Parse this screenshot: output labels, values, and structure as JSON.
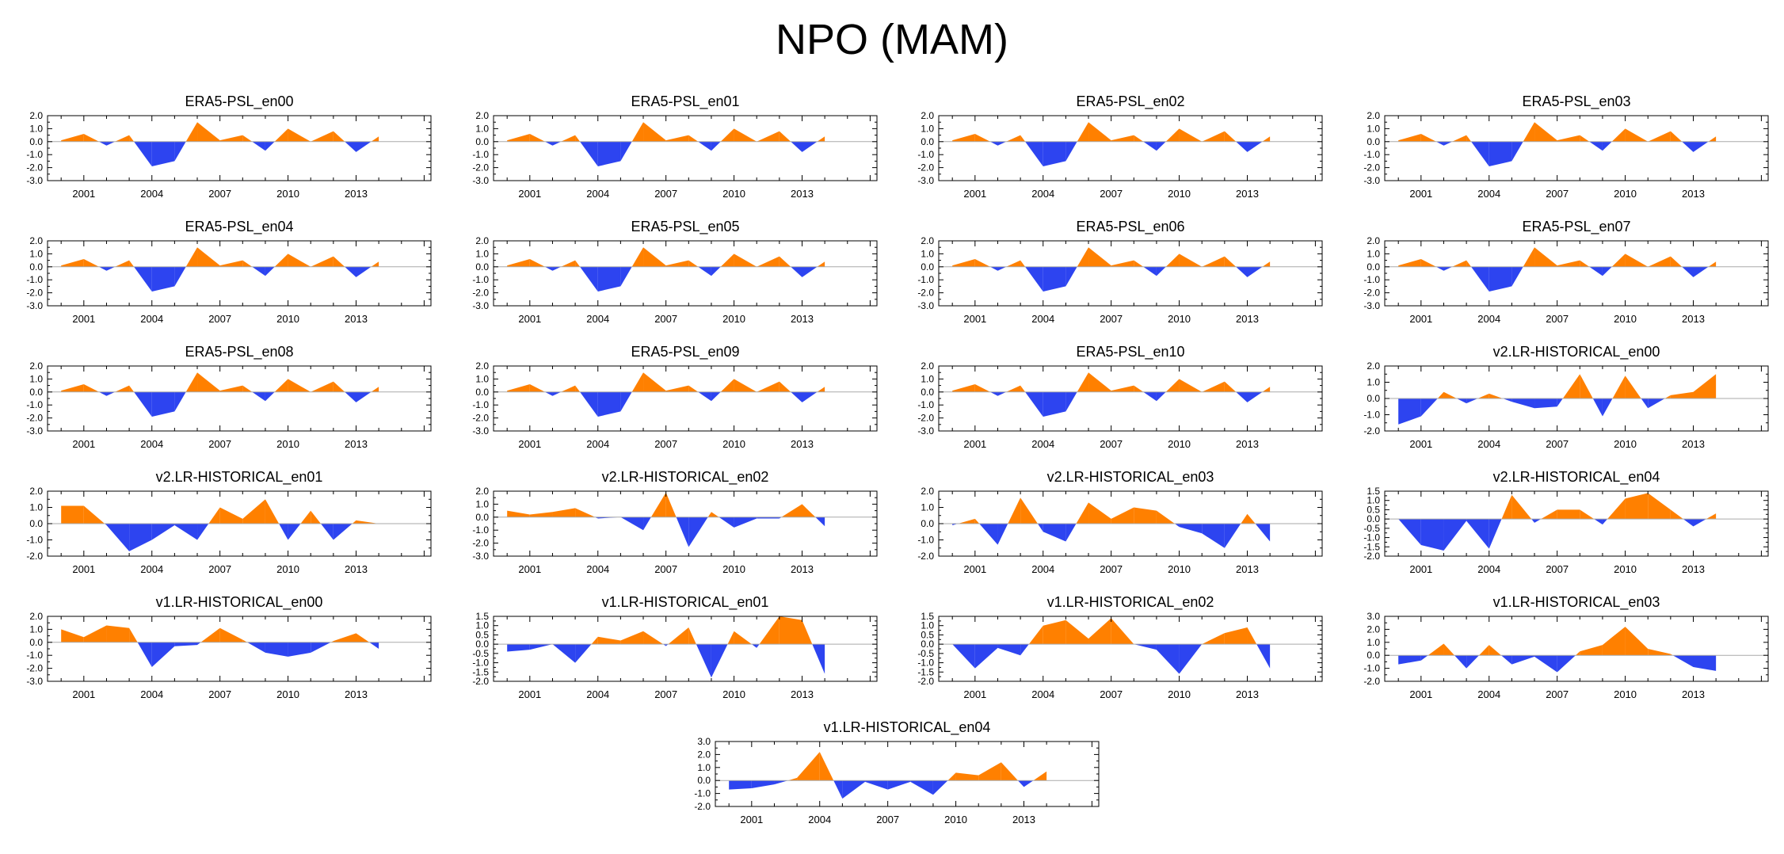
{
  "title": "NPO (MAM)",
  "colors": {
    "positive": "#ff8000",
    "negative": "#2d44f0",
    "axis": "#000000",
    "zero_line": "#aaaaaa"
  },
  "chart_data": [
    {
      "type": "area",
      "title": "ERA5-PSL_en00",
      "x": [
        2000,
        2001,
        2002,
        2003,
        2004,
        2005,
        2006,
        2007,
        2008,
        2009,
        2010,
        2011,
        2012,
        2013,
        2014
      ],
      "values": [
        0.1,
        0.6,
        -0.3,
        0.5,
        -1.9,
        -1.5,
        1.5,
        0.1,
        0.5,
        -0.7,
        1.0,
        0.0,
        0.8,
        -0.8,
        0.4
      ],
      "ylim": [
        -3.0,
        2.0
      ],
      "yticks": [
        "2.0",
        "1.0",
        "0.0",
        "-1.0",
        "-2.0",
        "-3.0"
      ],
      "xticks": [
        "2001",
        "2004",
        "2007",
        "2010",
        "2013"
      ]
    },
    {
      "type": "area",
      "title": "ERA5-PSL_en01",
      "x": [
        2000,
        2001,
        2002,
        2003,
        2004,
        2005,
        2006,
        2007,
        2008,
        2009,
        2010,
        2011,
        2012,
        2013,
        2014
      ],
      "values": [
        0.1,
        0.6,
        -0.3,
        0.5,
        -1.9,
        -1.5,
        1.5,
        0.1,
        0.5,
        -0.7,
        1.0,
        0.0,
        0.8,
        -0.8,
        0.4
      ],
      "ylim": [
        -3.0,
        2.0
      ],
      "yticks": [
        "2.0",
        "1.0",
        "0.0",
        "-1.0",
        "-2.0",
        "-3.0"
      ],
      "xticks": [
        "2001",
        "2004",
        "2007",
        "2010",
        "2013"
      ]
    },
    {
      "type": "area",
      "title": "ERA5-PSL_en02",
      "x": [
        2000,
        2001,
        2002,
        2003,
        2004,
        2005,
        2006,
        2007,
        2008,
        2009,
        2010,
        2011,
        2012,
        2013,
        2014
      ],
      "values": [
        0.1,
        0.6,
        -0.3,
        0.5,
        -1.9,
        -1.5,
        1.5,
        0.1,
        0.5,
        -0.7,
        1.0,
        0.0,
        0.8,
        -0.8,
        0.4
      ],
      "ylim": [
        -3.0,
        2.0
      ],
      "yticks": [
        "2.0",
        "1.0",
        "0.0",
        "-1.0",
        "-2.0",
        "-3.0"
      ],
      "xticks": [
        "2001",
        "2004",
        "2007",
        "2010",
        "2013"
      ]
    },
    {
      "type": "area",
      "title": "ERA5-PSL_en03",
      "x": [
        2000,
        2001,
        2002,
        2003,
        2004,
        2005,
        2006,
        2007,
        2008,
        2009,
        2010,
        2011,
        2012,
        2013,
        2014
      ],
      "values": [
        0.1,
        0.6,
        -0.3,
        0.5,
        -1.9,
        -1.5,
        1.5,
        0.1,
        0.5,
        -0.7,
        1.0,
        0.0,
        0.8,
        -0.8,
        0.4
      ],
      "ylim": [
        -3.0,
        2.0
      ],
      "yticks": [
        "2.0",
        "1.0",
        "0.0",
        "-1.0",
        "-2.0",
        "-3.0"
      ],
      "xticks": [
        "2001",
        "2004",
        "2007",
        "2010",
        "2013"
      ]
    },
    {
      "type": "area",
      "title": "ERA5-PSL_en04",
      "x": [
        2000,
        2001,
        2002,
        2003,
        2004,
        2005,
        2006,
        2007,
        2008,
        2009,
        2010,
        2011,
        2012,
        2013,
        2014
      ],
      "values": [
        0.1,
        0.6,
        -0.3,
        0.5,
        -1.9,
        -1.5,
        1.5,
        0.1,
        0.5,
        -0.7,
        1.0,
        0.0,
        0.8,
        -0.8,
        0.4
      ],
      "ylim": [
        -3.0,
        2.0
      ],
      "yticks": [
        "2.0",
        "1.0",
        "0.0",
        "-1.0",
        "-2.0",
        "-3.0"
      ],
      "xticks": [
        "2001",
        "2004",
        "2007",
        "2010",
        "2013"
      ]
    },
    {
      "type": "area",
      "title": "ERA5-PSL_en05",
      "x": [
        2000,
        2001,
        2002,
        2003,
        2004,
        2005,
        2006,
        2007,
        2008,
        2009,
        2010,
        2011,
        2012,
        2013,
        2014
      ],
      "values": [
        0.1,
        0.6,
        -0.3,
        0.5,
        -1.9,
        -1.5,
        1.5,
        0.1,
        0.5,
        -0.7,
        1.0,
        0.0,
        0.8,
        -0.8,
        0.4
      ],
      "ylim": [
        -3.0,
        2.0
      ],
      "yticks": [
        "2.0",
        "1.0",
        "0.0",
        "-1.0",
        "-2.0",
        "-3.0"
      ],
      "xticks": [
        "2001",
        "2004",
        "2007",
        "2010",
        "2013"
      ]
    },
    {
      "type": "area",
      "title": "ERA5-PSL_en06",
      "x": [
        2000,
        2001,
        2002,
        2003,
        2004,
        2005,
        2006,
        2007,
        2008,
        2009,
        2010,
        2011,
        2012,
        2013,
        2014
      ],
      "values": [
        0.1,
        0.6,
        -0.3,
        0.5,
        -1.9,
        -1.5,
        1.5,
        0.1,
        0.5,
        -0.7,
        1.0,
        0.0,
        0.8,
        -0.8,
        0.4
      ],
      "ylim": [
        -3.0,
        2.0
      ],
      "yticks": [
        "2.0",
        "1.0",
        "0.0",
        "-1.0",
        "-2.0",
        "-3.0"
      ],
      "xticks": [
        "2001",
        "2004",
        "2007",
        "2010",
        "2013"
      ]
    },
    {
      "type": "area",
      "title": "ERA5-PSL_en07",
      "x": [
        2000,
        2001,
        2002,
        2003,
        2004,
        2005,
        2006,
        2007,
        2008,
        2009,
        2010,
        2011,
        2012,
        2013,
        2014
      ],
      "values": [
        0.1,
        0.6,
        -0.3,
        0.5,
        -1.9,
        -1.5,
        1.5,
        0.1,
        0.5,
        -0.7,
        1.0,
        0.0,
        0.8,
        -0.8,
        0.4
      ],
      "ylim": [
        -3.0,
        2.0
      ],
      "yticks": [
        "2.0",
        "1.0",
        "0.0",
        "-1.0",
        "-2.0",
        "-3.0"
      ],
      "xticks": [
        "2001",
        "2004",
        "2007",
        "2010",
        "2013"
      ]
    },
    {
      "type": "area",
      "title": "ERA5-PSL_en08",
      "x": [
        2000,
        2001,
        2002,
        2003,
        2004,
        2005,
        2006,
        2007,
        2008,
        2009,
        2010,
        2011,
        2012,
        2013,
        2014
      ],
      "values": [
        0.1,
        0.6,
        -0.3,
        0.5,
        -1.9,
        -1.5,
        1.5,
        0.1,
        0.5,
        -0.7,
        1.0,
        0.0,
        0.8,
        -0.8,
        0.4
      ],
      "ylim": [
        -3.0,
        2.0
      ],
      "yticks": [
        "2.0",
        "1.0",
        "0.0",
        "-1.0",
        "-2.0",
        "-3.0"
      ],
      "xticks": [
        "2001",
        "2004",
        "2007",
        "2010",
        "2013"
      ]
    },
    {
      "type": "area",
      "title": "ERA5-PSL_en09",
      "x": [
        2000,
        2001,
        2002,
        2003,
        2004,
        2005,
        2006,
        2007,
        2008,
        2009,
        2010,
        2011,
        2012,
        2013,
        2014
      ],
      "values": [
        0.1,
        0.6,
        -0.3,
        0.5,
        -1.9,
        -1.5,
        1.5,
        0.1,
        0.5,
        -0.7,
        1.0,
        0.0,
        0.8,
        -0.8,
        0.4
      ],
      "ylim": [
        -3.0,
        2.0
      ],
      "yticks": [
        "2.0",
        "1.0",
        "0.0",
        "-1.0",
        "-2.0",
        "-3.0"
      ],
      "xticks": [
        "2001",
        "2004",
        "2007",
        "2010",
        "2013"
      ]
    },
    {
      "type": "area",
      "title": "ERA5-PSL_en10",
      "x": [
        2000,
        2001,
        2002,
        2003,
        2004,
        2005,
        2006,
        2007,
        2008,
        2009,
        2010,
        2011,
        2012,
        2013,
        2014
      ],
      "values": [
        0.1,
        0.6,
        -0.3,
        0.5,
        -1.9,
        -1.5,
        1.5,
        0.1,
        0.5,
        -0.7,
        1.0,
        0.0,
        0.8,
        -0.8,
        0.4
      ],
      "ylim": [
        -3.0,
        2.0
      ],
      "yticks": [
        "2.0",
        "1.0",
        "0.0",
        "-1.0",
        "-2.0",
        "-3.0"
      ],
      "xticks": [
        "2001",
        "2004",
        "2007",
        "2010",
        "2013"
      ]
    },
    {
      "type": "area",
      "title": "v2.LR-HISTORICAL_en00",
      "x": [
        2000,
        2001,
        2002,
        2003,
        2004,
        2005,
        2006,
        2007,
        2008,
        2009,
        2010,
        2011,
        2012,
        2013,
        2014
      ],
      "values": [
        -1.6,
        -1.1,
        0.4,
        -0.3,
        0.3,
        -0.2,
        -0.6,
        -0.5,
        1.5,
        -1.1,
        1.4,
        -0.6,
        0.2,
        0.4,
        1.5
      ],
      "ylim": [
        -2.0,
        2.0
      ],
      "yticks": [
        "2.0",
        "1.0",
        "0.0",
        "-1.0",
        "-2.0"
      ],
      "xticks": [
        "2001",
        "2004",
        "2007",
        "2010",
        "2013"
      ]
    },
    {
      "type": "area",
      "title": "v2.LR-HISTORICAL_en01",
      "x": [
        2000,
        2001,
        2002,
        2003,
        2004,
        2005,
        2006,
        2007,
        2008,
        2009,
        2010,
        2011,
        2012,
        2013,
        2014
      ],
      "values": [
        1.1,
        1.1,
        -0.1,
        -1.7,
        -1.0,
        -0.1,
        -1.0,
        1.0,
        0.3,
        1.5,
        -1.0,
        0.8,
        -1.0,
        0.2,
        0.0
      ],
      "ylim": [
        -2.0,
        2.0
      ],
      "yticks": [
        "2.0",
        "1.0",
        "0.0",
        "-1.0",
        "-2.0"
      ],
      "xticks": [
        "2001",
        "2004",
        "2007",
        "2010",
        "2013"
      ]
    },
    {
      "type": "area",
      "title": "v2.LR-HISTORICAL_en02",
      "x": [
        2000,
        2001,
        2002,
        2003,
        2004,
        2005,
        2006,
        2007,
        2008,
        2009,
        2010,
        2011,
        2012,
        2013,
        2014
      ],
      "values": [
        0.5,
        0.2,
        0.4,
        0.7,
        -0.1,
        0.0,
        -1.0,
        1.9,
        -2.3,
        0.4,
        -0.8,
        -0.1,
        -0.1,
        1.0,
        -0.7
      ],
      "ylim": [
        -3.0,
        2.0
      ],
      "yticks": [
        "2.0",
        "1.0",
        "0.0",
        "-1.0",
        "-2.0",
        "-3.0"
      ],
      "xticks": [
        "2001",
        "2004",
        "2007",
        "2010",
        "2013"
      ]
    },
    {
      "type": "area",
      "title": "v2.LR-HISTORICAL_en03",
      "x": [
        2000,
        2001,
        2002,
        2003,
        2004,
        2005,
        2006,
        2007,
        2008,
        2009,
        2010,
        2011,
        2012,
        2013,
        2014
      ],
      "values": [
        -0.1,
        0.3,
        -1.3,
        1.6,
        -0.5,
        -1.1,
        1.3,
        0.3,
        1.0,
        0.8,
        -0.2,
        -0.6,
        -1.5,
        0.6,
        -1.1
      ],
      "ylim": [
        -2.0,
        2.0
      ],
      "yticks": [
        "2.0",
        "1.0",
        "0.0",
        "-1.0",
        "-2.0"
      ],
      "xticks": [
        "2001",
        "2004",
        "2007",
        "2010",
        "2013"
      ]
    },
    {
      "type": "area",
      "title": "v2.LR-HISTORICAL_en04",
      "x": [
        2000,
        2001,
        2002,
        2003,
        2004,
        2005,
        2006,
        2007,
        2008,
        2009,
        2010,
        2011,
        2012,
        2013,
        2014
      ],
      "values": [
        0.0,
        -1.4,
        -1.7,
        -0.1,
        -1.6,
        1.3,
        -0.2,
        0.5,
        0.5,
        -0.3,
        1.1,
        1.4,
        0.5,
        -0.4,
        0.3
      ],
      "ylim": [
        -2.0,
        1.5
      ],
      "yticks": [
        "1.5",
        "1.0",
        "0.5",
        "0.0",
        "-0.5",
        "-1.0",
        "-1.5",
        "-2.0"
      ],
      "xticks": [
        "2001",
        "2004",
        "2007",
        "2010",
        "2013"
      ]
    },
    {
      "type": "area",
      "title": "v1.LR-HISTORICAL_en00",
      "x": [
        2000,
        2001,
        2002,
        2003,
        2004,
        2005,
        2006,
        2007,
        2008,
        2009,
        2010,
        2011,
        2012,
        2013,
        2014
      ],
      "values": [
        1.0,
        0.4,
        1.3,
        1.1,
        -1.9,
        -0.3,
        -0.2,
        1.1,
        0.2,
        -0.8,
        -1.1,
        -0.8,
        0.1,
        0.7,
        -0.5
      ],
      "ylim": [
        -3.0,
        2.0
      ],
      "yticks": [
        "2.0",
        "1.0",
        "0.0",
        "-1.0",
        "-2.0",
        "-3.0"
      ],
      "xticks": [
        "2001",
        "2004",
        "2007",
        "2010",
        "2013"
      ]
    },
    {
      "type": "area",
      "title": "v1.LR-HISTORICAL_en01",
      "x": [
        2000,
        2001,
        2002,
        2003,
        2004,
        2005,
        2006,
        2007,
        2008,
        2009,
        2010,
        2011,
        2012,
        2013,
        2014
      ],
      "values": [
        -0.4,
        -0.3,
        0.0,
        -1.0,
        0.4,
        0.2,
        0.7,
        -0.1,
        0.9,
        -1.8,
        0.7,
        -0.2,
        1.5,
        1.3,
        -1.6
      ],
      "ylim": [
        -2.0,
        1.5
      ],
      "yticks": [
        "1.5",
        "1.0",
        "0.5",
        "0.0",
        "-0.5",
        "-1.0",
        "-1.5",
        "-2.0"
      ],
      "xticks": [
        "2001",
        "2004",
        "2007",
        "2010",
        "2013"
      ]
    },
    {
      "type": "area",
      "title": "v1.LR-HISTORICAL_en02",
      "x": [
        2000,
        2001,
        2002,
        2003,
        2004,
        2005,
        2006,
        2007,
        2008,
        2009,
        2010,
        2011,
        2012,
        2013,
        2014
      ],
      "values": [
        0.0,
        -1.3,
        -0.2,
        -0.6,
        1.0,
        1.3,
        0.3,
        1.4,
        0.0,
        -0.3,
        -1.6,
        0.0,
        0.6,
        0.9,
        -1.3
      ],
      "ylim": [
        -2.0,
        1.5
      ],
      "yticks": [
        "1.5",
        "1.0",
        "0.5",
        "0.0",
        "-0.5",
        "-1.0",
        "-1.5",
        "-2.0"
      ],
      "xticks": [
        "2001",
        "2004",
        "2007",
        "2010",
        "2013"
      ]
    },
    {
      "type": "area",
      "title": "v1.LR-HISTORICAL_en03",
      "x": [
        2000,
        2001,
        2002,
        2003,
        2004,
        2005,
        2006,
        2007,
        2008,
        2009,
        2010,
        2011,
        2012,
        2013,
        2014
      ],
      "values": [
        -0.7,
        -0.4,
        0.9,
        -1.0,
        0.8,
        -0.7,
        -0.1,
        -1.3,
        0.3,
        0.8,
        2.2,
        0.5,
        0.1,
        -0.9,
        -1.2
      ],
      "ylim": [
        -2.0,
        3.0
      ],
      "yticks": [
        "3.0",
        "2.0",
        "1.0",
        "0.0",
        "-1.0",
        "-2.0"
      ],
      "xticks": [
        "2001",
        "2004",
        "2007",
        "2010",
        "2013"
      ]
    },
    {
      "type": "area",
      "title": "v1.LR-HISTORICAL_en04",
      "x": [
        2000,
        2001,
        2002,
        2003,
        2004,
        2005,
        2006,
        2007,
        2008,
        2009,
        2010,
        2011,
        2012,
        2013,
        2014
      ],
      "values": [
        -0.7,
        -0.6,
        -0.3,
        0.2,
        2.2,
        -1.4,
        -0.1,
        -0.7,
        -0.1,
        -1.1,
        0.6,
        0.4,
        1.4,
        -0.5,
        0.7
      ],
      "ylim": [
        -2.0,
        3.0
      ],
      "yticks": [
        "3.0",
        "2.0",
        "1.0",
        "0.0",
        "-1.0",
        "-2.0"
      ],
      "xticks": [
        "2001",
        "2004",
        "2007",
        "2010",
        "2013"
      ]
    }
  ]
}
